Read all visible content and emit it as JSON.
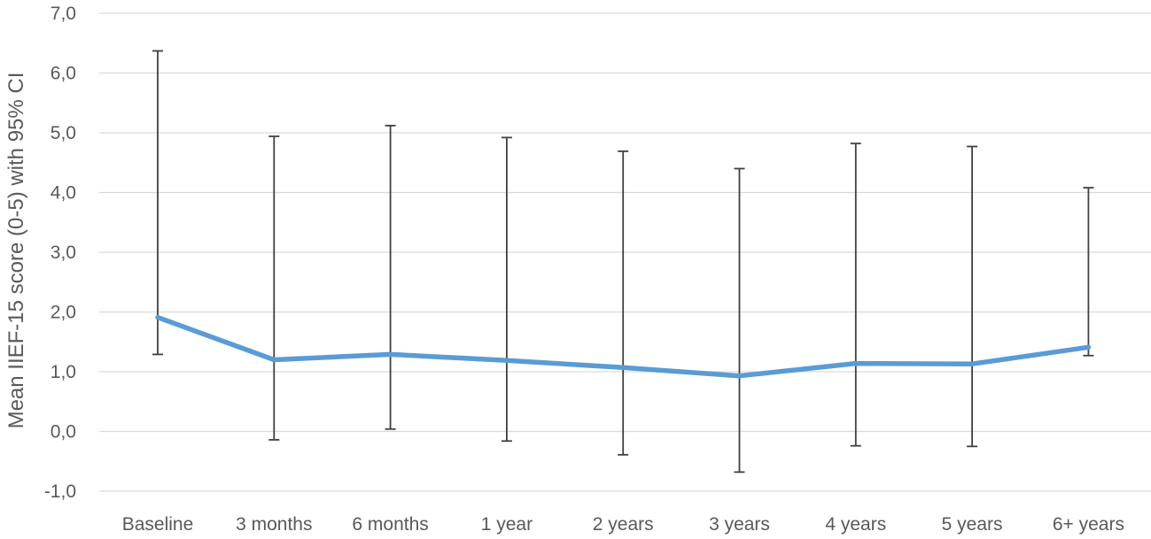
{
  "chart_data": {
    "type": "line",
    "title": "",
    "xlabel": "",
    "ylabel": "Mean IIEF-15 score (0-5) with 95% CI",
    "categories": [
      "Baseline",
      "3 months",
      "6 months",
      "1 year",
      "2 years",
      "3 years",
      "4 years",
      "5 years",
      "6+ years"
    ],
    "series": [
      {
        "values": [
          1.91,
          1.2,
          1.29,
          1.19,
          1.07,
          0.93,
          1.14,
          1.13,
          1.41
        ],
        "ci_lower": [
          1.29,
          -0.14,
          0.04,
          -0.16,
          -0.39,
          -0.68,
          -0.24,
          -0.25,
          1.27
        ],
        "ci_upper": [
          6.37,
          4.94,
          5.12,
          4.92,
          4.69,
          4.4,
          4.82,
          4.77,
          4.08
        ],
        "color": "#5B9BD5"
      }
    ],
    "ylim": [
      -1.0,
      7.0
    ],
    "y_ticks": [
      {
        "value": 7.0,
        "label": "7,0"
      },
      {
        "value": 6.0,
        "label": "6,0"
      },
      {
        "value": 5.0,
        "label": "5,0"
      },
      {
        "value": 4.0,
        "label": "4,0"
      },
      {
        "value": 3.0,
        "label": "3,0"
      },
      {
        "value": 2.0,
        "label": "2,0"
      },
      {
        "value": 1.0,
        "label": "1,0"
      },
      {
        "value": 0.0,
        "label": "0,0"
      },
      {
        "value": -1.0,
        "label": "-1,0"
      }
    ],
    "grid": true,
    "legend": "none",
    "colors": {
      "line": "#5B9BD5",
      "error_bar": "#404040",
      "grid": "#D9D9D9",
      "text": "#595959"
    }
  }
}
